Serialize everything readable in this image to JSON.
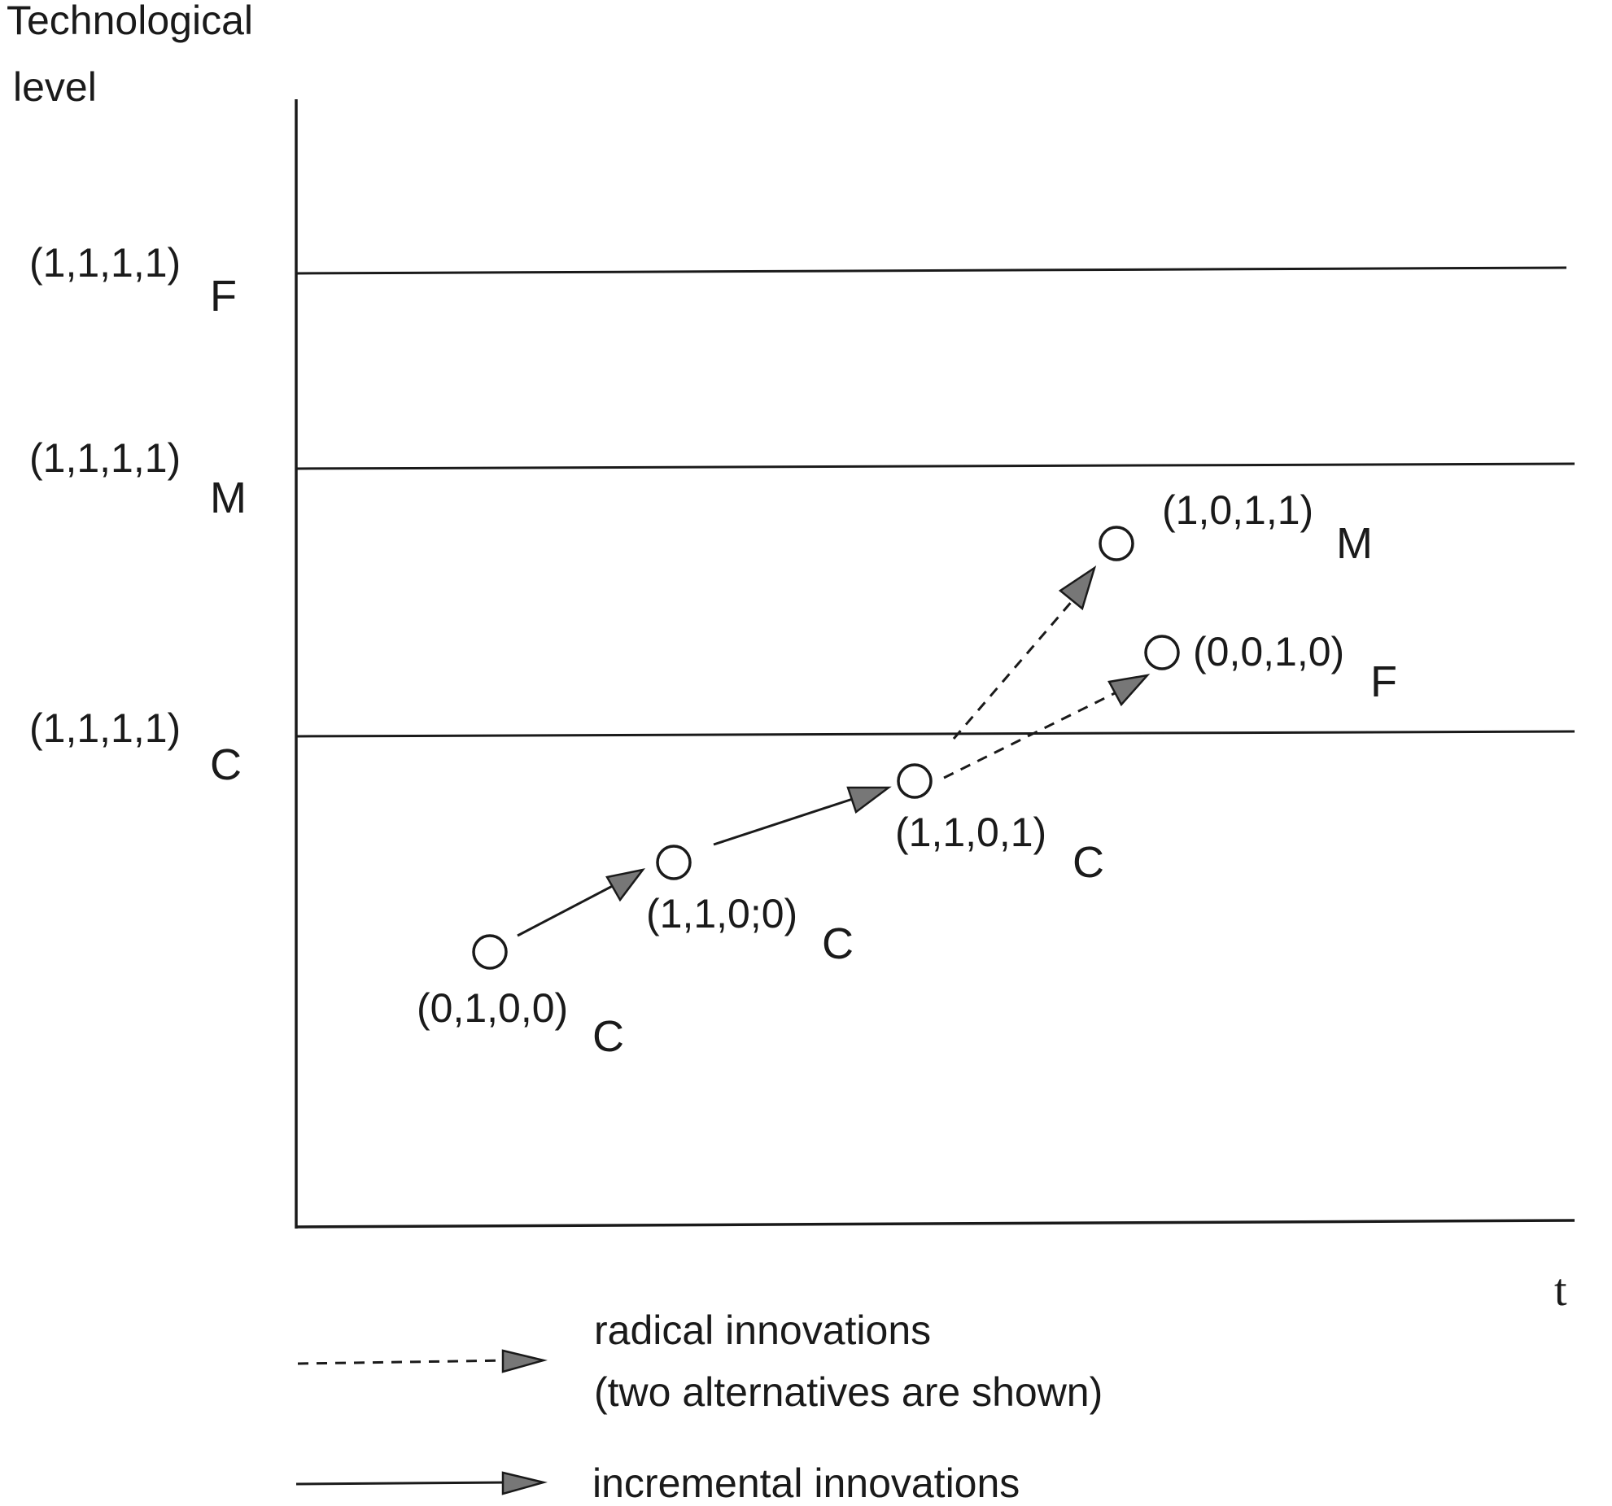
{
  "axis": {
    "y_title_line1": "Technological",
    "y_title_line2": "level",
    "x_title": "t"
  },
  "levels": [
    {
      "id": "F",
      "main": "(1,1,1,1)",
      "sub": "F"
    },
    {
      "id": "M",
      "main": "(1,1,1,1)",
      "sub": "M"
    },
    {
      "id": "C",
      "main": "(1,1,1,1)",
      "sub": "C"
    }
  ],
  "states": [
    {
      "id": "s1",
      "main": "(0,1,0,0)",
      "sub": "C"
    },
    {
      "id": "s2",
      "main": "(1,1,0;0)",
      "sub": "C"
    },
    {
      "id": "s3",
      "main": "(1,1,0,1)",
      "sub": "C"
    },
    {
      "id": "s4",
      "main": "(1,0,1,1)",
      "sub": "M"
    },
    {
      "id": "s5",
      "main": "(0,0,1,0)",
      "sub": "F"
    }
  ],
  "transitions": [
    {
      "from": "s1",
      "to": "s2",
      "kind": "incremental"
    },
    {
      "from": "s2",
      "to": "s3",
      "kind": "incremental"
    },
    {
      "from": "s3",
      "to": "s4",
      "kind": "radical"
    },
    {
      "from": "s3",
      "to": "s5",
      "kind": "radical"
    }
  ],
  "legend": {
    "radical_line1": "radical innovations",
    "radical_line2": "(two alternatives are shown)",
    "incremental": "incremental innovations"
  }
}
